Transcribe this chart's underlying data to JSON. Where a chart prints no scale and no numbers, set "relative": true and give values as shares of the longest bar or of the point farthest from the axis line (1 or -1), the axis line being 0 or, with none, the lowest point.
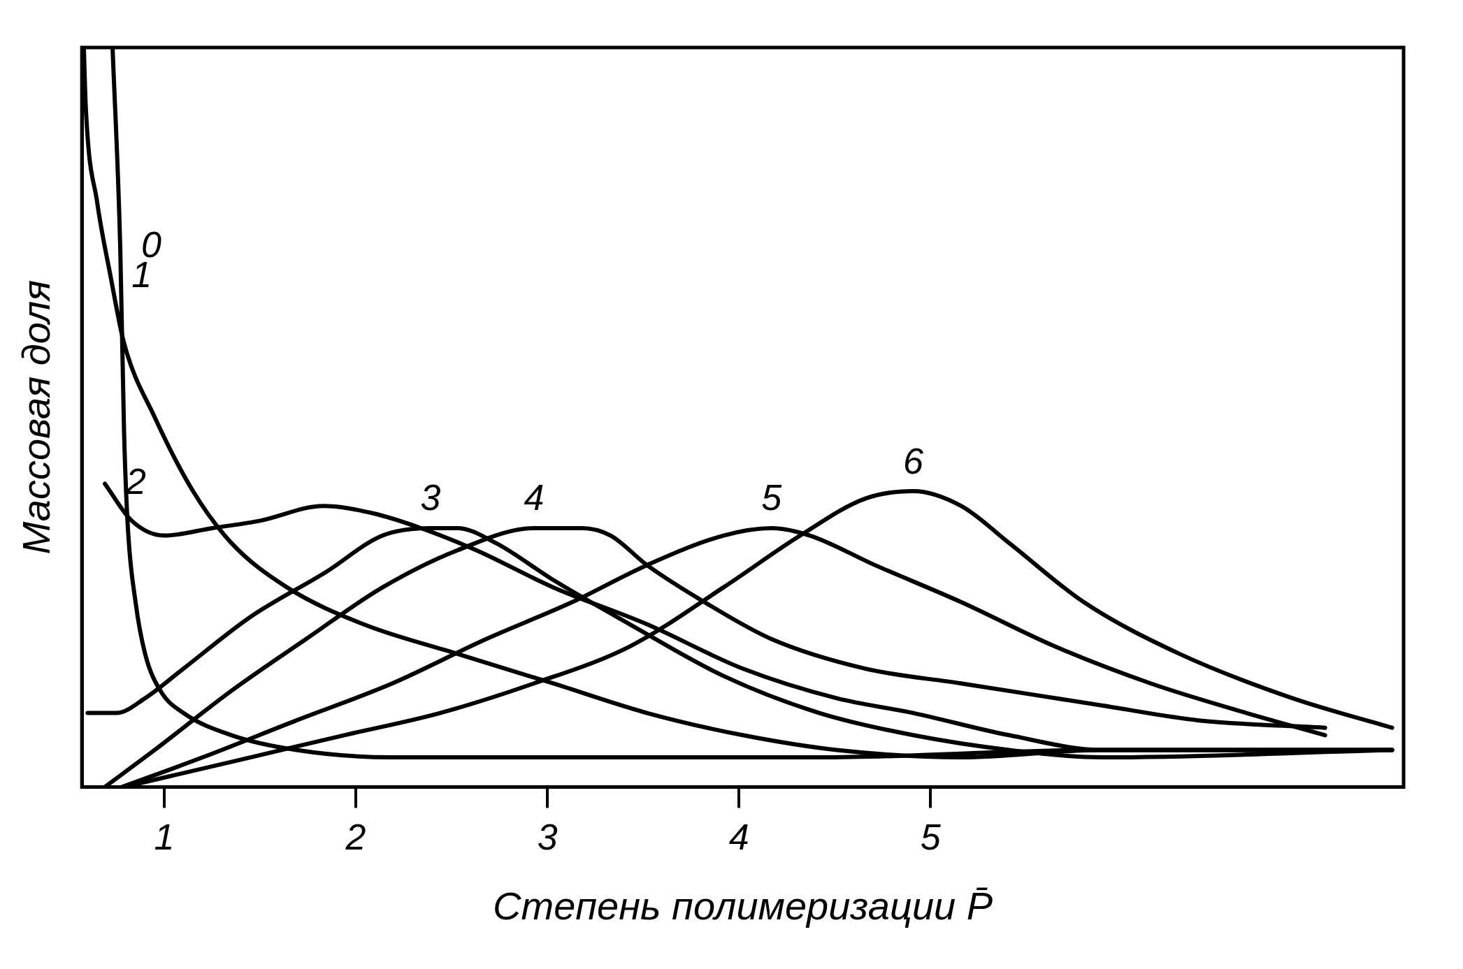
{
  "chart_data": {
    "type": "line",
    "xlabel": "Степень полимеризации P̄",
    "ylabel": "Массовая доля",
    "relative": true,
    "xlim": [
      0.57,
      7.47
    ],
    "xticks": [
      1,
      2,
      3,
      4,
      5
    ],
    "grid": false,
    "legend": false,
    "marker": "none",
    "line_style": "solid",
    "series": [
      {
        "name": "0",
        "color": "#000000",
        "x": [
          0.73,
          0.77,
          0.79,
          0.81,
          0.85,
          0.9,
          0.98,
          1.1,
          1.35,
          1.69,
          2.19,
          2.93,
          4.42,
          5.9,
          7.41
        ],
        "values": [
          1.0,
          0.73,
          0.48,
          0.35,
          0.25,
          0.18,
          0.13,
          0.1,
          0.07,
          0.05,
          0.04,
          0.04,
          0.04,
          0.05,
          0.05
        ]
      },
      {
        "name": "1",
        "color": "#000000",
        "x": [
          0.58,
          0.59,
          0.65,
          0.72,
          0.79,
          0.95,
          1.15,
          1.35,
          1.64,
          2.04,
          2.53,
          3.03,
          3.52,
          4.02,
          4.51,
          5.16,
          5.9,
          7.41
        ],
        "values": [
          1.0,
          0.92,
          0.79,
          0.69,
          0.6,
          0.5,
          0.4,
          0.33,
          0.27,
          0.22,
          0.18,
          0.14,
          0.1,
          0.07,
          0.05,
          0.04,
          0.05,
          0.05
        ]
      },
      {
        "name": "2",
        "color": "#000000",
        "x": [
          0.69,
          0.83,
          1.0,
          1.25,
          1.5,
          1.83,
          2.09,
          2.34,
          2.63,
          3.03,
          3.52,
          4.02,
          4.51,
          4.91,
          5.41,
          5.9,
          7.41
        ],
        "values": [
          0.41,
          0.36,
          0.34,
          0.35,
          0.36,
          0.38,
          0.37,
          0.35,
          0.32,
          0.27,
          0.22,
          0.16,
          0.12,
          0.1,
          0.07,
          0.05,
          0.05
        ]
      },
      {
        "name": "3",
        "color": "#000000",
        "x": [
          0.6,
          0.75,
          0.9,
          1.1,
          1.45,
          1.84,
          2.14,
          2.39,
          2.53,
          2.73,
          3.03,
          3.43,
          3.92,
          4.42,
          4.91,
          5.41,
          5.9,
          7.41
        ],
        "values": [
          0.1,
          0.1,
          0.12,
          0.16,
          0.23,
          0.29,
          0.34,
          0.35,
          0.35,
          0.33,
          0.28,
          0.22,
          0.15,
          0.1,
          0.07,
          0.05,
          0.04,
          0.05
        ]
      },
      {
        "name": "4",
        "color": "#000000",
        "x": [
          0.69,
          0.95,
          1.35,
          1.74,
          2.14,
          2.53,
          2.93,
          3.18,
          3.33,
          3.52,
          3.82,
          4.17,
          4.66,
          5.16,
          5.9,
          6.4,
          7.06
        ],
        "values": [
          0,
          0.05,
          0.13,
          0.2,
          0.27,
          0.32,
          0.35,
          0.35,
          0.34,
          0.3,
          0.25,
          0.2,
          0.16,
          0.14,
          0.11,
          0.09,
          0.08
        ]
      },
      {
        "name": "5",
        "color": "#000000",
        "x": [
          0.78,
          1.2,
          1.69,
          2.19,
          2.68,
          3.13,
          3.52,
          3.92,
          4.17,
          4.37,
          4.71,
          5.16,
          5.65,
          6.15,
          6.65,
          7.06
        ],
        "values": [
          0,
          0.04,
          0.09,
          0.14,
          0.2,
          0.25,
          0.3,
          0.34,
          0.35,
          0.34,
          0.3,
          0.25,
          0.19,
          0.14,
          0.1,
          0.07
        ]
      },
      {
        "name": "6",
        "color": "#000000",
        "x": [
          0.79,
          1.45,
          1.94,
          2.44,
          2.93,
          3.43,
          3.92,
          4.32,
          4.66,
          4.91,
          5.16,
          5.41,
          5.8,
          6.3,
          6.89,
          7.41
        ],
        "values": [
          0,
          0.04,
          0.07,
          0.1,
          0.14,
          0.19,
          0.27,
          0.34,
          0.39,
          0.4,
          0.38,
          0.33,
          0.25,
          0.18,
          0.12,
          0.08
        ]
      }
    ]
  }
}
